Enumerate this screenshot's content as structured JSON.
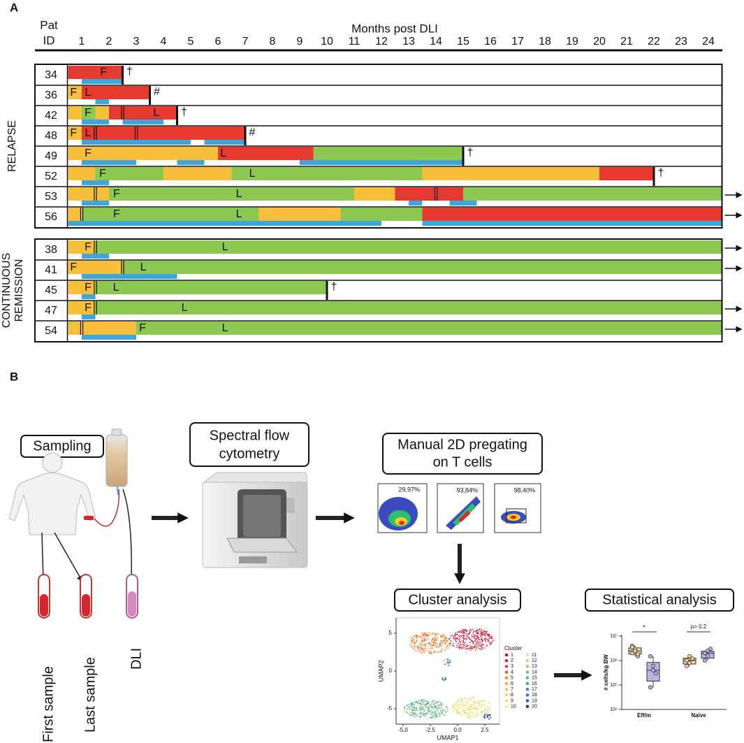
{
  "panel_a": {
    "label": "A",
    "header": {
      "pat": "Pat",
      "id": "ID",
      "axis_title": "Months post DLI",
      "months": [
        1,
        2,
        3,
        4,
        5,
        6,
        7,
        8,
        9,
        10,
        11,
        12,
        13,
        14,
        15,
        16,
        17,
        18,
        19,
        20,
        21,
        22,
        23,
        24
      ]
    },
    "xlim": [
      0.5,
      24.5
    ],
    "colors": {
      "yellow": "#f8bf3a",
      "green": "#8dc853",
      "red": "#e6392f",
      "blue": "#3ca6dd"
    },
    "groups": [
      {
        "name": "RELAPSE",
        "patients": [
          {
            "id": "34",
            "segments": [
              {
                "color": "red",
                "from": 0.5,
                "to": 2.5
              }
            ],
            "blue": [
              [
                1,
                2.5
              ]
            ],
            "lines": [],
            "marks": [
              {
                "text": "F",
                "at": 1.8
              }
            ],
            "end": 2.5,
            "symbol": "†"
          },
          {
            "id": "36",
            "segments": [
              {
                "color": "yellow",
                "from": 0.5,
                "to": 1
              },
              {
                "color": "red",
                "from": 1,
                "to": 3.5
              }
            ],
            "blue": [
              [
                1.5,
                2
              ]
            ],
            "lines": [],
            "marks": [
              {
                "text": "F",
                "at": 0.7
              },
              {
                "text": "L",
                "at": 1.23
              }
            ],
            "end": 3.5,
            "symbol": "#"
          },
          {
            "id": "42",
            "segments": [
              {
                "color": "yellow",
                "from": 0.5,
                "to": 1
              },
              {
                "color": "green",
                "from": 1,
                "to": 1.5
              },
              {
                "color": "yellow",
                "from": 1.5,
                "to": 2
              },
              {
                "color": "red",
                "from": 2,
                "to": 4.5
              }
            ],
            "blue": [
              [
                1,
                2
              ],
              [
                2.5,
                4
              ]
            ],
            "lines": [
              2.5
            ],
            "marks": [
              {
                "text": "F",
                "at": 1.23
              },
              {
                "text": "L",
                "at": 3.74
              }
            ],
            "end": 4.5,
            "symbol": "†"
          },
          {
            "id": "48",
            "segments": [
              {
                "color": "yellow",
                "from": 0.5,
                "to": 1
              },
              {
                "color": "red",
                "from": 1,
                "to": 7
              }
            ],
            "blue": [
              [
                1,
                5
              ],
              [
                5.5,
                7
              ]
            ],
            "lines": [
              1.5,
              3
            ],
            "marks": [
              {
                "text": "F",
                "at": 0.7
              },
              {
                "text": "L",
                "at": 1.23
              }
            ],
            "end": 7,
            "symbol": "#"
          },
          {
            "id": "49",
            "segments": [
              {
                "color": "yellow",
                "from": 0.5,
                "to": 6
              },
              {
                "color": "red",
                "from": 6,
                "to": 9.5
              },
              {
                "color": "green",
                "from": 9.5,
                "to": 15
              }
            ],
            "blue": [
              [
                1,
                3
              ],
              [
                4.5,
                5.5
              ],
              [
                9,
                15
              ]
            ],
            "lines": [],
            "marks": [
              {
                "text": "F",
                "at": 1.23
              },
              {
                "text": "L",
                "at": 6.2
              }
            ],
            "end": 15,
            "symbol": "†"
          },
          {
            "id": "52",
            "segments": [
              {
                "color": "yellow",
                "from": 0.5,
                "to": 1.5
              },
              {
                "color": "green",
                "from": 1.5,
                "to": 4
              },
              {
                "color": "yellow",
                "from": 4,
                "to": 6.5
              },
              {
                "color": "green",
                "from": 6.5,
                "to": 13.5
              },
              {
                "color": "yellow",
                "from": 13.5,
                "to": 20
              },
              {
                "color": "red",
                "from": 20,
                "to": 22
              }
            ],
            "blue": [
              [
                1,
                2
              ]
            ],
            "lines": [],
            "marks": [
              {
                "text": "F",
                "at": 1.77
              },
              {
                "text": "L",
                "at": 7.26
              }
            ],
            "end": 22,
            "symbol": "†"
          },
          {
            "id": "53",
            "segments": [
              {
                "color": "yellow",
                "from": 0.5,
                "to": 2
              },
              {
                "color": "green",
                "from": 2,
                "to": 11
              },
              {
                "color": "yellow",
                "from": 11,
                "to": 12.5
              },
              {
                "color": "red",
                "from": 12.5,
                "to": 15
              },
              {
                "color": "green",
                "from": 15,
                "to": 24.5
              }
            ],
            "blue": [
              [
                1,
                2
              ],
              [
                13,
                13.5
              ],
              [
                14.5,
                15.5
              ]
            ],
            "lines": [
              1.5,
              14
            ],
            "marks": [
              {
                "text": "F",
                "at": 2.28
              },
              {
                "text": "L",
                "at": 6.77
              }
            ],
            "arrow": true
          },
          {
            "id": "56",
            "segments": [
              {
                "color": "yellow",
                "from": 0.5,
                "to": 1
              },
              {
                "color": "green",
                "from": 1,
                "to": 7.5
              },
              {
                "color": "yellow",
                "from": 7.5,
                "to": 10.5
              },
              {
                "color": "green",
                "from": 10.5,
                "to": 13.5
              },
              {
                "color": "red",
                "from": 13.5,
                "to": 24.5
              }
            ],
            "blue": [
              [
                0.5,
                12
              ],
              [
                13.5,
                24.5
              ]
            ],
            "lines": [
              1
            ],
            "marks": [
              {
                "text": "F",
                "at": 2.28
              },
              {
                "text": "L",
                "at": 6.77
              }
            ],
            "arrow": true
          }
        ]
      },
      {
        "name": [
          "CONTINUOUS",
          "REMISSION"
        ],
        "patients": [
          {
            "id": "38",
            "segments": [
              {
                "color": "yellow",
                "from": 0.5,
                "to": 1.5
              },
              {
                "color": "green",
                "from": 1.5,
                "to": 24.5
              }
            ],
            "blue": [
              [
                1,
                2
              ]
            ],
            "lines": [
              1.5
            ],
            "marks": [
              {
                "text": "F",
                "at": 1.23
              },
              {
                "text": "L",
                "at": 6.26
              }
            ],
            "arrow": true
          },
          {
            "id": "41",
            "segments": [
              {
                "color": "yellow",
                "from": 0.5,
                "to": 2.5
              },
              {
                "color": "green",
                "from": 2.5,
                "to": 24.5
              }
            ],
            "blue": [
              [
                1,
                4.5
              ]
            ],
            "lines": [
              2.5
            ],
            "marks": [
              {
                "text": "F",
                "at": 0.7
              },
              {
                "text": "L",
                "at": 3.26
              }
            ],
            "arrow": true
          },
          {
            "id": "45",
            "segments": [
              {
                "color": "yellow",
                "from": 0.5,
                "to": 1.5
              },
              {
                "color": "green",
                "from": 1.5,
                "to": 10
              }
            ],
            "blue": [
              [
                1,
                1.5
              ]
            ],
            "lines": [
              1.5
            ],
            "marks": [
              {
                "text": "F",
                "at": 1.23
              },
              {
                "text": "L",
                "at": 2.26
              }
            ],
            "end": 10,
            "symbol": "†"
          },
          {
            "id": "47",
            "segments": [
              {
                "color": "yellow",
                "from": 0.5,
                "to": 1.5
              },
              {
                "color": "green",
                "from": 1.5,
                "to": 24.5
              }
            ],
            "blue": [
              [
                1,
                1.5
              ]
            ],
            "lines": [
              1.5
            ],
            "marks": [
              {
                "text": "F",
                "at": 1.23
              },
              {
                "text": "L",
                "at": 4.77
              }
            ],
            "arrow": true
          },
          {
            "id": "54",
            "segments": [
              {
                "color": "yellow",
                "from": 0.5,
                "to": 3
              },
              {
                "color": "green",
                "from": 3,
                "to": 24.5
              }
            ],
            "blue": [
              [
                1,
                3
              ]
            ],
            "lines": [
              1
            ],
            "marks": [
              {
                "text": "F",
                "at": 3.23
              },
              {
                "text": "L",
                "at": 6.26
              }
            ],
            "arrow": true
          }
        ]
      }
    ]
  },
  "panel_b": {
    "label": "B",
    "steps": {
      "sampling": "Sampling",
      "cytometry": [
        "Spectral flow",
        "cytometry"
      ],
      "pregating": [
        "Manual 2D pregating",
        "on T cells"
      ],
      "cluster": "Cluster analysis",
      "stats": "Statistical analysis"
    },
    "samples": [
      "First sample",
      "Last sample",
      "DLI"
    ],
    "gating": [
      "29,97%",
      "93,84%",
      "98,40%"
    ],
    "umap": {
      "x_label": "UMAP1",
      "y_label": "UMAP2",
      "xticks": [
        {
          "value": -5,
          "label": "-5.0"
        },
        {
          "value": -2.5,
          "label": "-2.5"
        },
        {
          "value": 0,
          "label": "0.0"
        },
        {
          "value": 2.5,
          "label": "2.5"
        }
      ],
      "yticks": [
        5,
        0,
        -5
      ],
      "legend_title": "Cluster",
      "clusters": [
        "1",
        "2",
        "3",
        "4",
        "5",
        "6",
        "7",
        "8",
        "9",
        "10",
        "11",
        "12",
        "13",
        "14",
        "15",
        "16",
        "17",
        "18",
        "19",
        "20"
      ]
    },
    "stats": {
      "y_label": "# cells/kg BW",
      "categories": [
        "Eff/m",
        "Naive"
      ],
      "log": true,
      "yticks": [
        {
          "value": 10000,
          "label": "10⁴"
        },
        {
          "value": 100000,
          "label": "10⁵"
        },
        {
          "value": 1000000,
          "label": "10⁶"
        },
        {
          "value": 10000000,
          "label": "10⁷"
        }
      ],
      "annotations": [
        "*",
        "p= 0.2"
      ],
      "series": [
        {
          "color": "#f3d3a4",
          "values": [
            [
              2000000,
              3000000,
              1500000,
              4000000,
              2500000,
              1800000,
              3500000
            ],
            [
              1000000,
              800000,
              1200000,
              600000,
              1500000
            ]
          ]
        },
        {
          "color": "#b9b4e2",
          "values": [
            [
              1500000,
              600000,
              300000,
              80000,
              400000
            ],
            [
              2000000,
              1500000,
              3000000,
              1000000,
              2500000
            ]
          ]
        }
      ]
    }
  }
}
